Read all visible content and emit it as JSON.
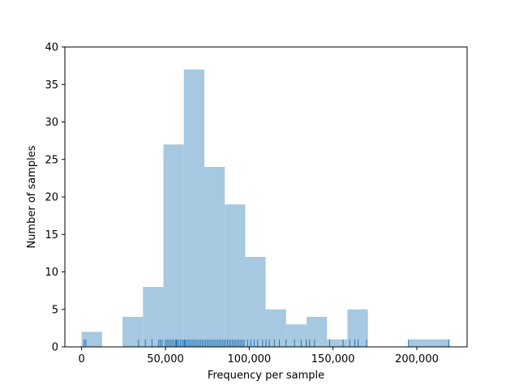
{
  "chart_data": {
    "type": "bar",
    "subtype": "histogram-with-rug",
    "xlabel": "Frequency per sample",
    "ylabel": "Number of samples",
    "xlim": [
      -10000,
      230000
    ],
    "ylim": [
      0,
      40
    ],
    "x_ticks": [
      0,
      50000,
      100000,
      150000,
      200000
    ],
    "x_tick_labels": [
      "0",
      "50,000",
      "100,000",
      "150,000",
      "200,000"
    ],
    "y_ticks": [
      0,
      5,
      10,
      15,
      20,
      25,
      30,
      35,
      40
    ],
    "y_tick_labels": [
      "0",
      "5",
      "10",
      "15",
      "20",
      "25",
      "30",
      "35",
      "40"
    ],
    "bin_edges": [
      0,
      12200,
      24400,
      36600,
      48800,
      61000,
      73200,
      85400,
      97600,
      109800,
      122000,
      134200,
      146400,
      158600,
      170800,
      183000,
      195200,
      207400,
      219600
    ],
    "counts": [
      2,
      0,
      4,
      8,
      27,
      37,
      24,
      19,
      12,
      5,
      3,
      4,
      1,
      5,
      0,
      0,
      1,
      1
    ],
    "rug_x": [
      1500,
      2500,
      34000,
      38000,
      42000,
      46000,
      47000,
      48000,
      50000,
      51000,
      52000,
      53000,
      54000,
      55000,
      56000,
      56500,
      57000,
      58000,
      59000,
      60000,
      61000,
      61500,
      62000,
      63000,
      64000,
      65000,
      66000,
      67000,
      68000,
      69000,
      70000,
      71000,
      72000,
      73000,
      74000,
      75000,
      76000,
      77000,
      78000,
      79000,
      80000,
      81000,
      82000,
      83000,
      84000,
      85000,
      86000,
      87000,
      88000,
      89000,
      90000,
      91000,
      92000,
      93000,
      94000,
      95000,
      96000,
      97000,
      99000,
      101000,
      103000,
      105000,
      108000,
      110000,
      112000,
      115000,
      118000,
      122000,
      127000,
      131000,
      134000,
      136000,
      139000,
      148000,
      156000,
      160000,
      163000,
      165000,
      170000,
      195000,
      219000
    ],
    "bar_color": "#a6c8e0",
    "rug_color": "#1f77b4",
    "grid": false,
    "legend": false
  }
}
